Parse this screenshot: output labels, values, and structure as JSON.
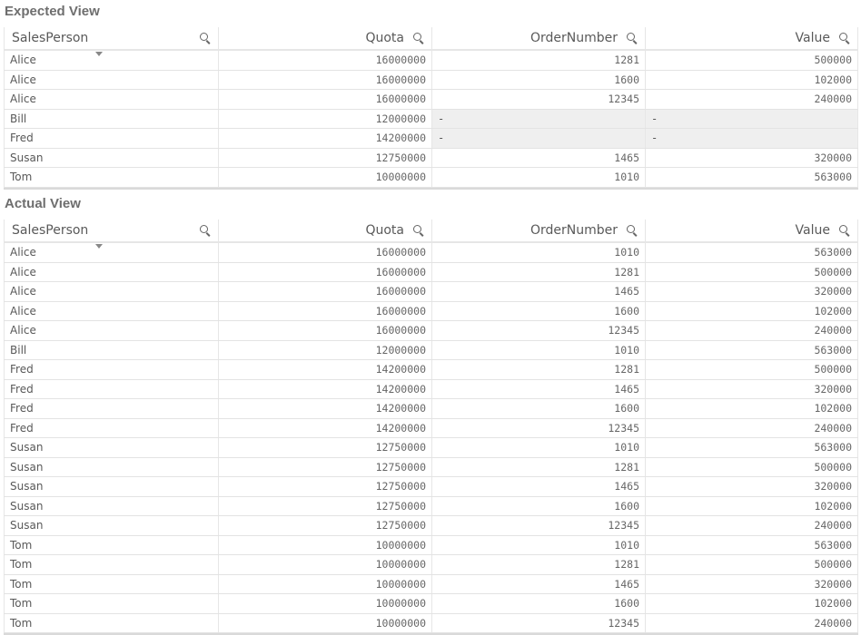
{
  "expected": {
    "title": "Expected View",
    "columns": [
      "SalesPerson",
      "Quota",
      "OrderNumber",
      "Value"
    ],
    "rows": [
      [
        "Alice",
        "16000000",
        "1281",
        "500000"
      ],
      [
        "Alice",
        "16000000",
        "1600",
        "102000"
      ],
      [
        "Alice",
        "16000000",
        "12345",
        "240000"
      ],
      [
        "Bill",
        "12000000",
        "-",
        "-"
      ],
      [
        "Fred",
        "14200000",
        "-",
        "-"
      ],
      [
        "Susan",
        "12750000",
        "1465",
        "320000"
      ],
      [
        "Tom",
        "10000000",
        "1010",
        "563000"
      ]
    ]
  },
  "actual": {
    "title": "Actual View",
    "columns": [
      "SalesPerson",
      "Quota",
      "OrderNumber",
      "Value"
    ],
    "rows": [
      [
        "Alice",
        "16000000",
        "1010",
        "563000"
      ],
      [
        "Alice",
        "16000000",
        "1281",
        "500000"
      ],
      [
        "Alice",
        "16000000",
        "1465",
        "320000"
      ],
      [
        "Alice",
        "16000000",
        "1600",
        "102000"
      ],
      [
        "Alice",
        "16000000",
        "12345",
        "240000"
      ],
      [
        "Bill",
        "12000000",
        "1010",
        "563000"
      ],
      [
        "Fred",
        "14200000",
        "1281",
        "500000"
      ],
      [
        "Fred",
        "14200000",
        "1465",
        "320000"
      ],
      [
        "Fred",
        "14200000",
        "1600",
        "102000"
      ],
      [
        "Fred",
        "14200000",
        "12345",
        "240000"
      ],
      [
        "Susan",
        "12750000",
        "1010",
        "563000"
      ],
      [
        "Susan",
        "12750000",
        "1281",
        "500000"
      ],
      [
        "Susan",
        "12750000",
        "1465",
        "320000"
      ],
      [
        "Susan",
        "12750000",
        "1600",
        "102000"
      ],
      [
        "Susan",
        "12750000",
        "12345",
        "240000"
      ],
      [
        "Tom",
        "10000000",
        "1010",
        "563000"
      ],
      [
        "Tom",
        "10000000",
        "1281",
        "500000"
      ],
      [
        "Tom",
        "10000000",
        "1465",
        "320000"
      ],
      [
        "Tom",
        "10000000",
        "1600",
        "102000"
      ],
      [
        "Tom",
        "10000000",
        "12345",
        "240000"
      ]
    ]
  }
}
